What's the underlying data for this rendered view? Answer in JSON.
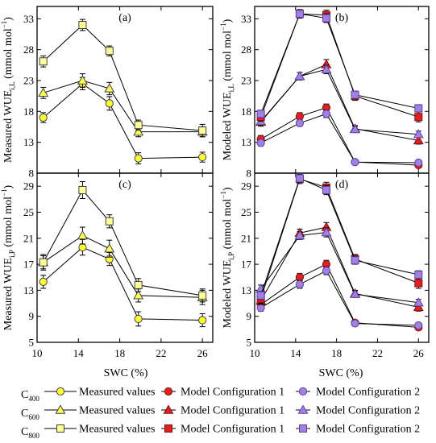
{
  "figure": {
    "x_axis_title": "SWC (%)",
    "legend": {
      "row_labels": [
        "C400",
        "C600",
        "C800"
      ],
      "columns": [
        "Measured values",
        "Model Configuration 1",
        "Model Configuration 2"
      ]
    }
  },
  "colors": {
    "c400": "#ffff33",
    "c600": "#ffff55",
    "c800": "#ffff99",
    "model1": "#e02020",
    "model2": "#a080e0",
    "model2_edge": "#6040a0",
    "marker_edge": "#404040",
    "line": "#000000"
  },
  "chart_data": [
    {
      "type": "line",
      "panel_label": "(a)",
      "ylabel": "Measured WUE",
      "ylabel_sub": "i,L",
      "ylabel_unit": "(mmol mol",
      "x_ticks": [
        10,
        14,
        18,
        22,
        26
      ],
      "xlim": [
        10,
        27
      ],
      "y_ticks": [
        8,
        13,
        18,
        23,
        28,
        33
      ],
      "ylim": [
        8,
        35
      ],
      "x": [
        10.6,
        14.4,
        17,
        19.8,
        26
      ],
      "series": [
        {
          "name": "C400 Measured values",
          "marker": "circle",
          "color": "#ffff33",
          "values": [
            17.0,
            22.5,
            19.3,
            10.4,
            10.6
          ],
          "err": [
            0.8,
            1.0,
            1.1,
            0.9,
            0.8
          ]
        },
        {
          "name": "C600 Measured values",
          "marker": "triangle",
          "color": "#ffff55",
          "values": [
            21.0,
            23.0,
            21.7,
            14.7,
            14.7
          ],
          "err": [
            0.9,
            1.1,
            1.0,
            0.8,
            0.8
          ]
        },
        {
          "name": "C800 Measured values",
          "marker": "square",
          "color": "#ffff99",
          "values": [
            26.1,
            32.0,
            27.8,
            15.8,
            14.9
          ],
          "err": [
            0.9,
            0.9,
            0.8,
            0.8,
            1.0
          ]
        }
      ]
    },
    {
      "type": "line",
      "panel_label": "(b)",
      "ylabel": "Modeled WUE",
      "ylabel_sub": "i,L",
      "ylabel_unit": "(mmol mol",
      "x_ticks": [
        10,
        14,
        18,
        22,
        26
      ],
      "xlim": [
        10,
        27
      ],
      "y_ticks": [
        8,
        13,
        18,
        23,
        28,
        33
      ],
      "ylim": [
        8,
        35
      ],
      "x": [
        10.6,
        14.4,
        17,
        19.8,
        26
      ],
      "series": [
        {
          "name": "C400 Model Configuration 1",
          "marker": "circle",
          "color": "#e02020",
          "values": [
            13.5,
            17.2,
            18.6,
            9.8,
            9.3
          ],
          "err": [
            0.6,
            0.6,
            0.6,
            0.4,
            0.4
          ]
        },
        {
          "name": "C400 Model Configuration 2",
          "marker": "circle",
          "color": "#a080e0",
          "values": [
            12.9,
            16.1,
            17.6,
            9.8,
            9.7
          ],
          "err": [
            0.5,
            0.5,
            0.6,
            0.4,
            0.4
          ]
        },
        {
          "name": "C600 Model Configuration 1",
          "marker": "triangle",
          "color": "#e02020",
          "values": [
            16.3,
            23.7,
            25.6,
            15.2,
            13.3
          ],
          "err": [
            0.7,
            0.6,
            0.8,
            0.5,
            0.6
          ]
        },
        {
          "name": "C600 Model Configuration 2",
          "marker": "triangle",
          "color": "#a080e0",
          "values": [
            16.4,
            23.7,
            24.8,
            15.1,
            14.3
          ],
          "err": [
            0.6,
            0.6,
            0.7,
            0.5,
            0.5
          ]
        },
        {
          "name": "C800 Model Configuration 1",
          "marker": "square",
          "color": "#e02020",
          "values": [
            17.1,
            33.8,
            33.6,
            20.5,
            17.1
          ],
          "err": [
            0.7,
            0.7,
            0.8,
            0.7,
            0.8
          ]
        },
        {
          "name": "C800 Model Configuration 2",
          "marker": "square",
          "color": "#a080e0",
          "values": [
            17.6,
            33.8,
            33.1,
            20.7,
            18.5
          ],
          "err": [
            0.6,
            0.6,
            0.7,
            0.6,
            0.6
          ]
        }
      ]
    },
    {
      "type": "line",
      "panel_label": "(c)",
      "ylabel": "Measured WUE",
      "ylabel_sub": "i,P",
      "ylabel_unit": "(mmol mol",
      "x_ticks": [
        10,
        14,
        18,
        22,
        26
      ],
      "x_tick_labels": [
        "10",
        "14",
        "18",
        "22",
        "26"
      ],
      "xlim": [
        10,
        27
      ],
      "y_ticks": [
        5,
        9,
        13,
        17,
        21,
        25,
        29
      ],
      "ylim": [
        5,
        31
      ],
      "x": [
        10.6,
        14.4,
        17,
        19.8,
        26
      ],
      "series": [
        {
          "name": "C400 Measured values",
          "marker": "circle",
          "color": "#ffff33",
          "values": [
            14.3,
            19.6,
            17.8,
            8.6,
            8.4
          ],
          "err": [
            1.0,
            1.2,
            1.0,
            1.1,
            1.0
          ]
        },
        {
          "name": "C600 Measured values",
          "marker": "triangle",
          "color": "#ffff55",
          "values": [
            17.3,
            21.4,
            19.4,
            12.2,
            11.9
          ],
          "err": [
            1.2,
            1.3,
            1.3,
            1.0,
            1.1
          ]
        },
        {
          "name": "C800 Measured values",
          "marker": "square",
          "color": "#ffff99",
          "values": [
            17.3,
            28.4,
            23.6,
            13.8,
            12.2
          ],
          "err": [
            1.0,
            1.3,
            1.0,
            1.0,
            1.0
          ]
        }
      ]
    },
    {
      "type": "line",
      "panel_label": "(d)",
      "ylabel": "Modeled WUE",
      "ylabel_sub": "i,P",
      "ylabel_unit": "(mmol mol",
      "x_ticks": [
        10,
        14,
        18,
        22,
        26
      ],
      "x_tick_labels": [
        "10",
        "14",
        "18",
        "22",
        "26"
      ],
      "xlim": [
        10,
        27
      ],
      "y_ticks": [
        5,
        9,
        13,
        17,
        21,
        25,
        29
      ],
      "ylim": [
        5,
        31
      ],
      "x": [
        10.6,
        14.4,
        17,
        19.8,
        26
      ],
      "series": [
        {
          "name": "C400 Model Configuration 1",
          "marker": "circle",
          "color": "#e02020",
          "values": [
            10.8,
            15.0,
            17.0,
            8.0,
            7.3
          ],
          "err": [
            0.6,
            0.6,
            0.6,
            0.4,
            0.4
          ]
        },
        {
          "name": "C400 Model Configuration 2",
          "marker": "circle",
          "color": "#a080e0",
          "values": [
            10.3,
            13.9,
            16.0,
            7.9,
            7.6
          ],
          "err": [
            0.5,
            0.6,
            0.6,
            0.4,
            0.4
          ]
        },
        {
          "name": "C600 Model Configuration 1",
          "marker": "triangle",
          "color": "#e02020",
          "values": [
            11.4,
            21.8,
            22.7,
            12.5,
            10.4
          ],
          "err": [
            0.6,
            0.6,
            0.7,
            0.5,
            0.6
          ]
        },
        {
          "name": "C600 Model Configuration 2",
          "marker": "triangle",
          "color": "#a080e0",
          "values": [
            13.2,
            21.4,
            21.9,
            12.4,
            11.1
          ],
          "err": [
            0.6,
            0.6,
            0.7,
            0.5,
            0.5
          ]
        },
        {
          "name": "C800 Model Configuration 1",
          "marker": "square",
          "color": "#e02020",
          "values": [
            11.7,
            30.1,
            28.8,
            17.8,
            14.1
          ],
          "err": [
            0.7,
            0.7,
            0.8,
            0.7,
            0.8
          ]
        },
        {
          "name": "C800 Model Configuration 2",
          "marker": "square",
          "color": "#a080e0",
          "values": [
            12.2,
            30.2,
            28.4,
            17.6,
            15.4
          ],
          "err": [
            0.6,
            0.6,
            0.7,
            0.6,
            0.6
          ]
        }
      ]
    }
  ]
}
